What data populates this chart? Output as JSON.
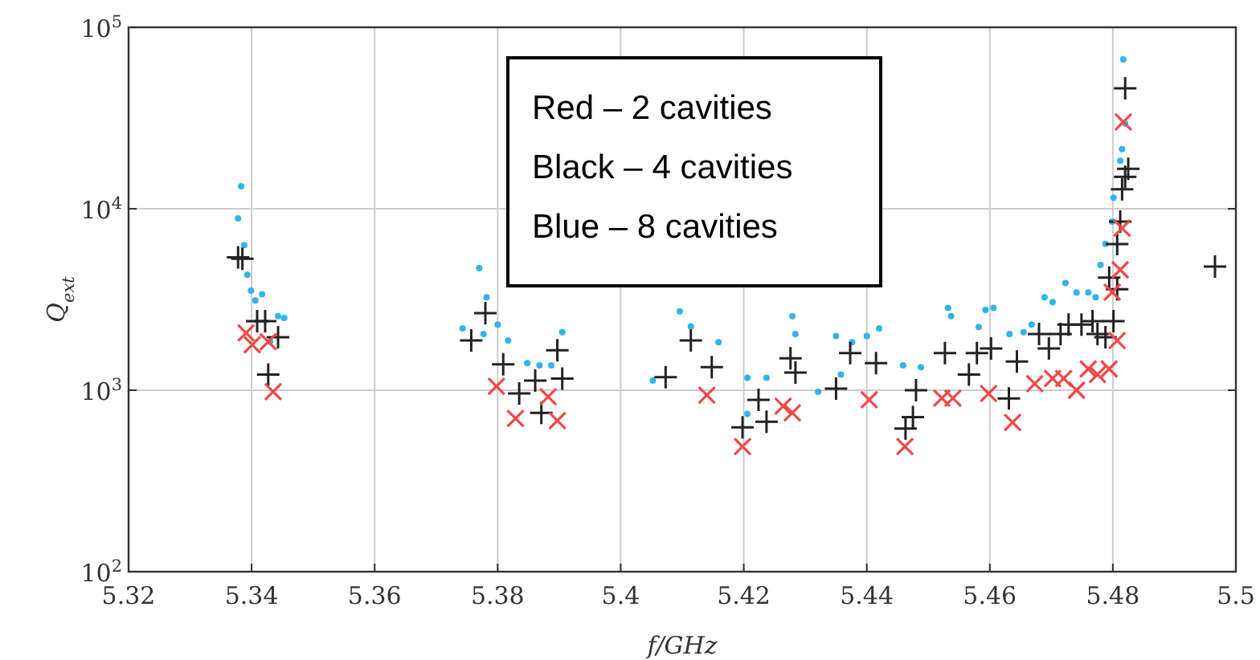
{
  "chart_data": {
    "type": "scatter",
    "xlabel": "f/GHz",
    "ylabel": "Q$_{ext}$",
    "log": "y",
    "grid": true,
    "xlim": [
      5.32,
      5.5
    ],
    "xticks": [
      5.32,
      5.34,
      5.36,
      5.38,
      5.4,
      5.42,
      5.44,
      5.46,
      5.48,
      5.5
    ],
    "ylim": [
      100,
      100000
    ],
    "yticks": [
      {
        "value": 100,
        "label": "10$^{2}$"
      },
      {
        "value": 1000,
        "label": "10$^{3}$"
      },
      {
        "value": 10000,
        "label": "10$^{4}$"
      },
      {
        "value": 100000,
        "label": "10$^{5}$"
      }
    ],
    "annotations": [
      "Red – 2 cavities",
      "Black – 4 cavities",
      "Blue – 8 cavities"
    ],
    "series": [
      {
        "color": "#31b4ee",
        "marker": "circle",
        "x": [
          5.3383,
          5.3378,
          5.3388,
          5.3393,
          5.3399,
          5.3417,
          5.3406,
          5.3443,
          5.3453,
          5.343,
          5.377,
          5.3782,
          5.38,
          5.3743,
          5.3817,
          5.3777,
          5.3848,
          5.3868,
          5.3887,
          5.3905,
          5.4096,
          5.4114,
          5.4159,
          5.4052,
          5.4206,
          5.4237,
          5.4279,
          5.4284,
          5.4206,
          5.4321,
          5.435,
          5.4358,
          5.4376,
          5.44,
          5.442,
          5.4459,
          5.4488,
          5.4532,
          5.4537,
          5.4582,
          5.4593,
          5.4606,
          5.4632,
          5.4655,
          5.4668,
          5.4689,
          5.4702,
          5.4723,
          5.4741,
          5.476,
          5.4772,
          5.478,
          5.4788,
          5.4799,
          5.4801,
          5.4812,
          5.4815,
          5.482,
          5.4817
        ],
        "values": [
          13300,
          8860,
          6300,
          4330,
          3540,
          3380,
          3120,
          2560,
          2500,
          1850,
          4700,
          3250,
          2300,
          2190,
          1880,
          2040,
          1410,
          1370,
          1370,
          2090,
          2720,
          2250,
          1840,
          1130,
          1170,
          1170,
          2560,
          2040,
          740,
          980,
          1990,
          1220,
          1840,
          1990,
          2190,
          1370,
          1340,
          2840,
          2560,
          2230,
          2770,
          2840,
          2040,
          2090,
          2300,
          3250,
          3060,
          3900,
          3460,
          3460,
          3250,
          4900,
          6400,
          8500,
          11500,
          18400,
          21300,
          29500,
          66500
        ]
      },
      {
        "color": "#222222",
        "marker": "plus",
        "x": [
          5.3385,
          5.3378,
          5.3409,
          5.3422,
          5.3443,
          5.3427,
          5.3757,
          5.378,
          5.3809,
          5.3835,
          5.3861,
          5.3871,
          5.3897,
          5.3905,
          5.4073,
          5.4114,
          5.4148,
          5.4198,
          5.4224,
          5.4237,
          5.4276,
          5.4284,
          5.435,
          5.4373,
          5.4415,
          5.4463,
          5.4475,
          5.448,
          5.4527,
          5.4566,
          5.4579,
          5.4602,
          5.4631,
          5.4644,
          5.468,
          5.4696,
          5.4715,
          5.4728,
          5.4749,
          5.4767,
          5.4775,
          5.4788,
          5.4794,
          5.4801,
          5.4807,
          5.4807,
          5.4812,
          5.4815,
          5.482,
          5.4825,
          5.482,
          5.4966
        ],
        "values": [
          5310,
          5400,
          2400,
          2400,
          1960,
          1220,
          1880,
          2660,
          1390,
          960,
          1130,
          750,
          1660,
          1160,
          1180,
          1880,
          1340,
          625,
          885,
          670,
          1500,
          1250,
          1020,
          1600,
          1410,
          615,
          710,
          1000,
          1600,
          1220,
          1600,
          1700,
          900,
          1440,
          2040,
          1700,
          2040,
          2300,
          2300,
          2400,
          2040,
          1960,
          4170,
          2400,
          3600,
          6380,
          8500,
          12800,
          15000,
          16600,
          46100,
          4800
        ]
      },
      {
        "color": "#f04848",
        "marker": "cross",
        "x": [
          5.3391,
          5.3401,
          5.3427,
          5.3435,
          5.3798,
          5.3829,
          5.3882,
          5.3897,
          5.414,
          5.4198,
          5.4264,
          5.4279,
          5.4404,
          5.4462,
          5.4522,
          5.454,
          5.4598,
          5.4637,
          5.4673,
          5.4702,
          5.472,
          5.4741,
          5.476,
          5.4775,
          5.4794,
          5.4807,
          5.4799,
          5.4812,
          5.4815,
          5.4817
        ],
        "values": [
          2070,
          1780,
          1850,
          980,
          1050,
          700,
          920,
          680,
          940,
          490,
          817,
          750,
          885,
          490,
          904,
          904,
          960,
          665,
          1085,
          1160,
          1160,
          1000,
          1310,
          1220,
          1310,
          1880,
          3470,
          4610,
          7830,
          30100
        ]
      }
    ]
  }
}
